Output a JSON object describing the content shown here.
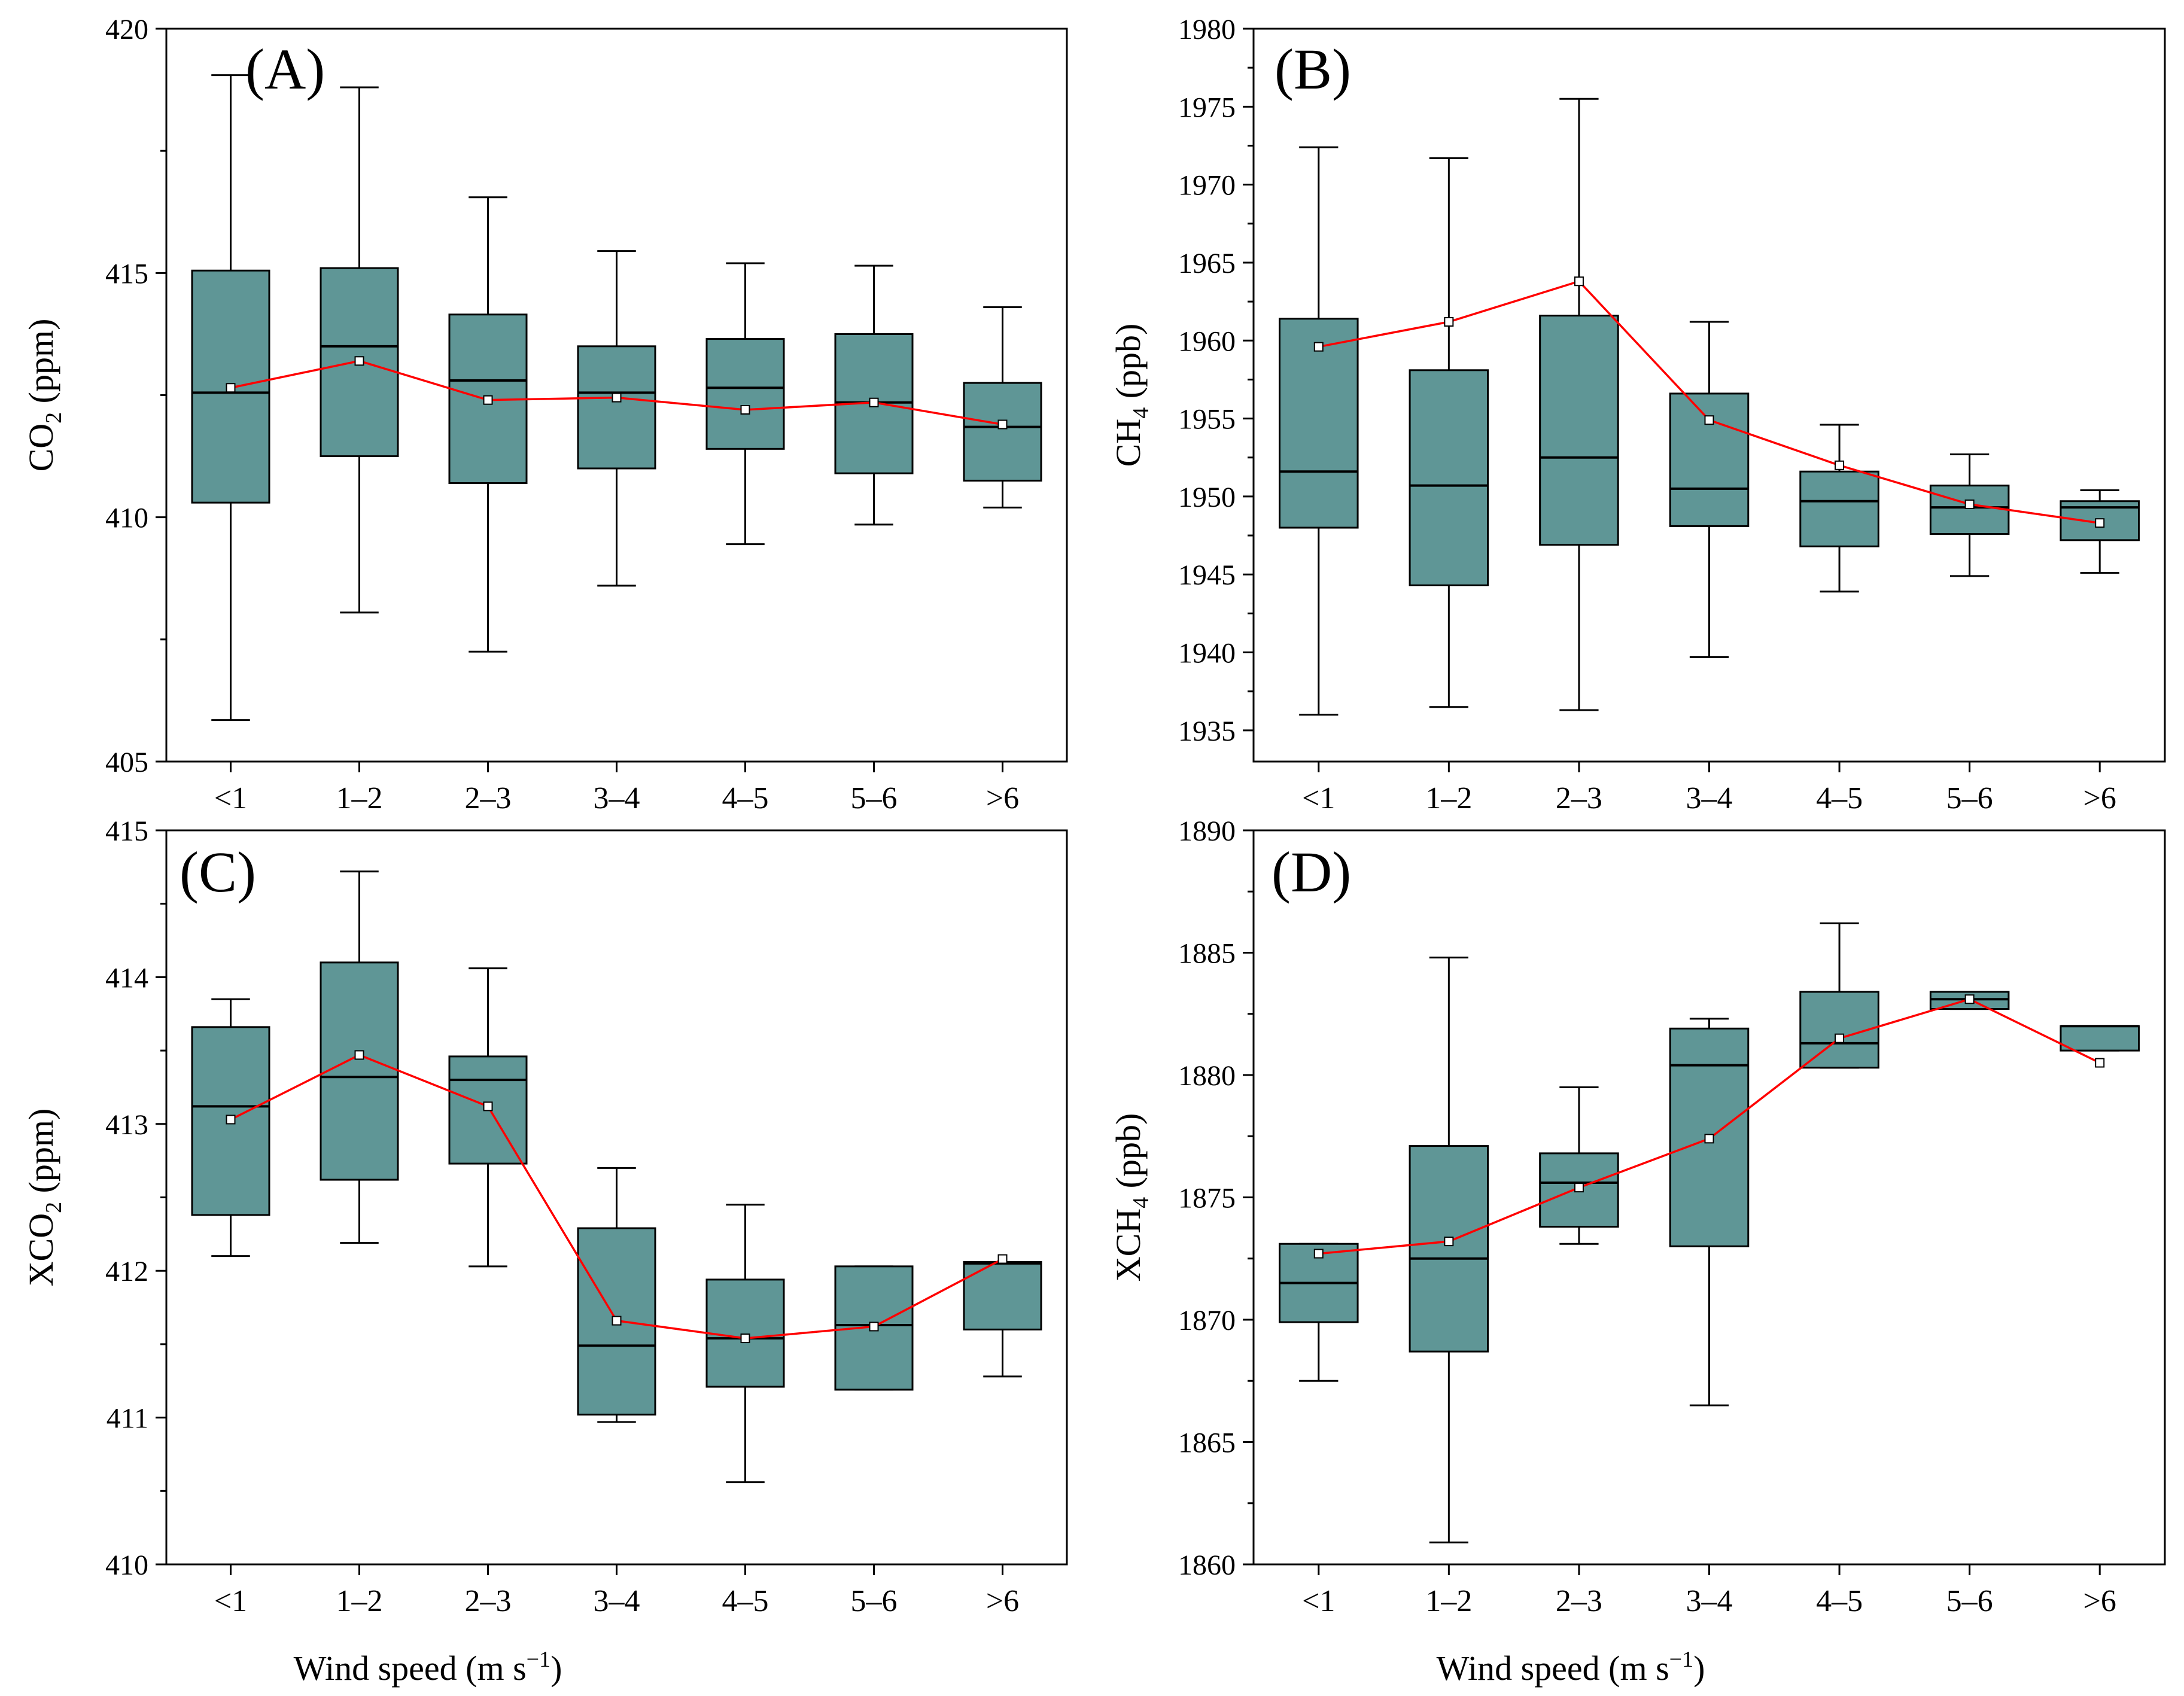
{
  "colors": {
    "box_fill": "#5f9696",
    "box_stroke": "#000000",
    "mean_line": "#ff0000",
    "mean_marker_fill": "#ffffff",
    "axis": "#000000"
  },
  "figure": {
    "xlabel_prefix": "Wind speed (m s",
    "xlabel_exp": "−1",
    "xlabel_suffix": ")"
  },
  "chart_data": [
    {
      "type": "box",
      "panel_label": "(A)",
      "ylabel_main": "CO",
      "ylabel_sub": "2",
      "ylabel_rest": " (ppm)",
      "categories": [
        "<1",
        "1–2",
        "2–3",
        "3–4",
        "4–5",
        "5–6",
        ">6"
      ],
      "ylim": [
        405,
        420
      ],
      "yticks": [
        405,
        410,
        415,
        420
      ],
      "boxes": [
        {
          "whisker_low": 405.85,
          "q1": 410.3,
          "median": 412.55,
          "q3": 415.05,
          "whisker_high": 419.05,
          "mean": 412.65
        },
        {
          "whisker_low": 408.05,
          "q1": 411.25,
          "median": 413.5,
          "q3": 415.1,
          "whisker_high": 418.8,
          "mean": 413.2
        },
        {
          "whisker_low": 407.25,
          "q1": 410.7,
          "median": 412.8,
          "q3": 414.15,
          "whisker_high": 416.55,
          "mean": 412.4
        },
        {
          "whisker_low": 408.6,
          "q1": 411.0,
          "median": 412.55,
          "q3": 413.5,
          "whisker_high": 415.45,
          "mean": 412.45
        },
        {
          "whisker_low": 409.45,
          "q1": 411.4,
          "median": 412.65,
          "q3": 413.65,
          "whisker_high": 415.2,
          "mean": 412.2
        },
        {
          "whisker_low": 409.85,
          "q1": 410.9,
          "median": 412.35,
          "q3": 413.75,
          "whisker_high": 415.15,
          "mean": 412.35
        },
        {
          "whisker_low": 410.2,
          "q1": 410.75,
          "median": 411.85,
          "q3": 412.75,
          "whisker_high": 414.3,
          "mean": 411.9
        }
      ]
    },
    {
      "type": "box",
      "panel_label": "(B)",
      "ylabel_main": "CH",
      "ylabel_sub": "4",
      "ylabel_rest": " (ppb)",
      "categories": [
        "<1",
        "1–2",
        "2–3",
        "3–4",
        "4–5",
        "5–6",
        ">6"
      ],
      "ylim": [
        1933,
        1980
      ],
      "yticks": [
        1935,
        1940,
        1945,
        1950,
        1955,
        1960,
        1965,
        1970,
        1975,
        1980
      ],
      "boxes": [
        {
          "whisker_low": 1936.0,
          "q1": 1948.0,
          "median": 1951.6,
          "q3": 1961.4,
          "whisker_high": 1972.4,
          "mean": 1959.6
        },
        {
          "whisker_low": 1936.5,
          "q1": 1944.3,
          "median": 1950.7,
          "q3": 1958.1,
          "whisker_high": 1971.7,
          "mean": 1961.2
        },
        {
          "whisker_low": 1936.3,
          "q1": 1946.9,
          "median": 1952.5,
          "q3": 1961.6,
          "whisker_high": 1975.5,
          "mean": 1963.8
        },
        {
          "whisker_low": 1939.7,
          "q1": 1948.1,
          "median": 1950.5,
          "q3": 1956.6,
          "whisker_high": 1961.2,
          "mean": 1954.9
        },
        {
          "whisker_low": 1943.9,
          "q1": 1946.8,
          "median": 1949.7,
          "q3": 1951.6,
          "whisker_high": 1954.6,
          "mean": 1952.0
        },
        {
          "whisker_low": 1944.9,
          "q1": 1947.6,
          "median": 1949.3,
          "q3": 1950.7,
          "whisker_high": 1952.7,
          "mean": 1949.5
        },
        {
          "whisker_low": 1945.1,
          "q1": 1947.2,
          "median": 1949.3,
          "q3": 1949.7,
          "whisker_high": 1950.4,
          "mean": 1948.3
        }
      ]
    },
    {
      "type": "box",
      "panel_label": "(C)",
      "ylabel_main": "XCO",
      "ylabel_sub": "2",
      "ylabel_rest": " (ppm)",
      "categories": [
        "<1",
        "1–2",
        "2–3",
        "3–4",
        "4–5",
        "5–6",
        ">6"
      ],
      "ylim": [
        410,
        415
      ],
      "yticks": [
        410,
        411,
        412,
        413,
        414,
        415
      ],
      "boxes": [
        {
          "whisker_low": 412.1,
          "q1": 412.38,
          "median": 413.12,
          "q3": 413.66,
          "whisker_high": 413.85,
          "mean": 413.03
        },
        {
          "whisker_low": 412.19,
          "q1": 412.62,
          "median": 413.32,
          "q3": 414.1,
          "whisker_high": 414.72,
          "mean": 413.47
        },
        {
          "whisker_low": 412.03,
          "q1": 412.73,
          "median": 413.3,
          "q3": 413.46,
          "whisker_high": 414.06,
          "mean": 413.12
        },
        {
          "whisker_low": 410.97,
          "q1": 411.02,
          "median": 411.49,
          "q3": 412.29,
          "whisker_high": 412.7,
          "mean": 411.66
        },
        {
          "whisker_low": 410.56,
          "q1": 411.21,
          "median": 411.54,
          "q3": 411.94,
          "whisker_high": 412.45,
          "mean": 411.54
        },
        {
          "whisker_low": 411.19,
          "q1": 411.19,
          "median": 411.63,
          "q3": 412.03,
          "whisker_high": 412.03,
          "mean": 411.62
        },
        {
          "whisker_low": 411.28,
          "q1": 411.6,
          "median": 412.05,
          "q3": 412.06,
          "whisker_high": 412.06,
          "mean": 412.08
        }
      ]
    },
    {
      "type": "box",
      "panel_label": "(D)",
      "ylabel_main": "XCH",
      "ylabel_sub": "4",
      "ylabel_rest": " (ppb)",
      "categories": [
        "<1",
        "1–2",
        "2–3",
        "3–4",
        "4–5",
        "5–6",
        ">6"
      ],
      "ylim": [
        1860,
        1890
      ],
      "yticks": [
        1860,
        1865,
        1870,
        1875,
        1880,
        1885,
        1890
      ],
      "boxes": [
        {
          "whisker_low": 1867.5,
          "q1": 1869.9,
          "median": 1871.5,
          "q3": 1873.1,
          "whisker_high": 1873.1,
          "mean": 1872.7
        },
        {
          "whisker_low": 1860.9,
          "q1": 1868.7,
          "median": 1872.5,
          "q3": 1877.1,
          "whisker_high": 1884.8,
          "mean": 1873.2
        },
        {
          "whisker_low": 1873.1,
          "q1": 1873.8,
          "median": 1875.6,
          "q3": 1876.8,
          "whisker_high": 1879.5,
          "mean": 1875.4
        },
        {
          "whisker_low": 1866.5,
          "q1": 1873.0,
          "median": 1880.4,
          "q3": 1881.9,
          "whisker_high": 1882.3,
          "mean": 1877.4
        },
        {
          "whisker_low": 1880.3,
          "q1": 1880.3,
          "median": 1881.3,
          "q3": 1883.4,
          "whisker_high": 1886.2,
          "mean": 1881.5
        },
        {
          "whisker_low": 1882.7,
          "q1": 1882.7,
          "median": 1883.1,
          "q3": 1883.4,
          "whisker_high": 1883.4,
          "mean": 1883.1
        },
        {
          "whisker_low": 1881.0,
          "q1": 1881.0,
          "median": 1882.0,
          "q3": 1882.0,
          "whisker_high": 1882.0,
          "mean": 1880.5
        }
      ]
    }
  ]
}
